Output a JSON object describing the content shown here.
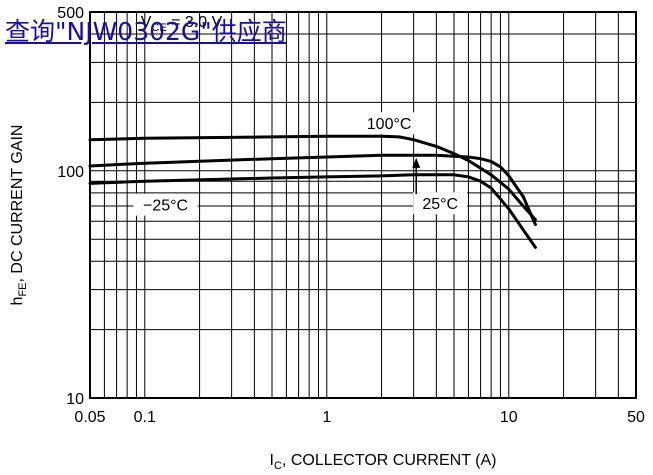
{
  "link_text": "查询\"NJW0302G\"供应商",
  "chart_data": {
    "type": "line",
    "title": "",
    "xlabel": "I_C, COLLECTOR CURRENT (A)",
    "ylabel": "h_FE, DC CURRENT GAIN",
    "xscale": "log",
    "yscale": "log",
    "xlim": [
      0.05,
      50
    ],
    "ylim": [
      10,
      500
    ],
    "x_ticks": [
      0.05,
      0.1,
      1,
      10,
      50
    ],
    "x_tick_labels": [
      "0.05",
      "0.1",
      "1",
      "10",
      "50"
    ],
    "y_ticks": [
      10,
      100,
      500
    ],
    "y_tick_labels": [
      "10",
      "100",
      "500"
    ],
    "grid": true,
    "annotation": "V_CE = 3.0 V",
    "series": [
      {
        "name": "100°C",
        "x": [
          0.05,
          0.1,
          0.5,
          1,
          2,
          2.5,
          3,
          4,
          5,
          6,
          8,
          10,
          12,
          14
        ],
        "y": [
          137,
          139,
          141,
          142,
          142,
          141,
          137,
          128,
          119,
          111,
          96,
          83,
          70,
          61
        ]
      },
      {
        "name": "25°C",
        "x": [
          0.05,
          0.1,
          0.5,
          1,
          2,
          3,
          4,
          5,
          6,
          7,
          8,
          9,
          10,
          12,
          14
        ],
        "y": [
          105,
          108,
          113,
          115,
          117,
          117,
          117,
          116,
          115,
          113,
          110,
          104,
          95,
          77,
          58
        ]
      },
      {
        "name": "−25°C",
        "x": [
          0.05,
          0.1,
          0.5,
          1,
          2,
          3,
          4,
          5,
          6,
          7,
          8,
          10,
          12,
          14
        ],
        "y": [
          88,
          90,
          93,
          94,
          95,
          96,
          96,
          96,
          94,
          90,
          84,
          68,
          55,
          46
        ]
      }
    ],
    "series_labels": [
      {
        "text": "100°C",
        "x": 2.2,
        "y": 162
      },
      {
        "text": "25°C",
        "x": 4.2,
        "y": 72
      },
      {
        "text": "−25°C",
        "x": 0.13,
        "y": 71
      }
    ]
  }
}
